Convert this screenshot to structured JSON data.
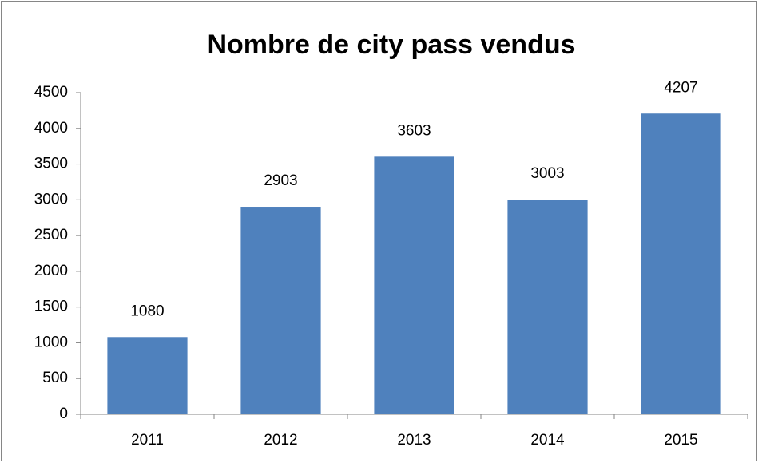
{
  "chart_data": {
    "type": "bar",
    "title": "Nombre de city pass vendus",
    "categories": [
      "2011",
      "2012",
      "2013",
      "2014",
      "2015"
    ],
    "values": [
      1080,
      2903,
      3603,
      3003,
      4207
    ],
    "color": "#4f81bd",
    "ylim": [
      0,
      4500
    ],
    "yticks": [
      0,
      500,
      1000,
      1500,
      2000,
      2500,
      3000,
      3500,
      4000,
      4500
    ],
    "grid": false
  }
}
